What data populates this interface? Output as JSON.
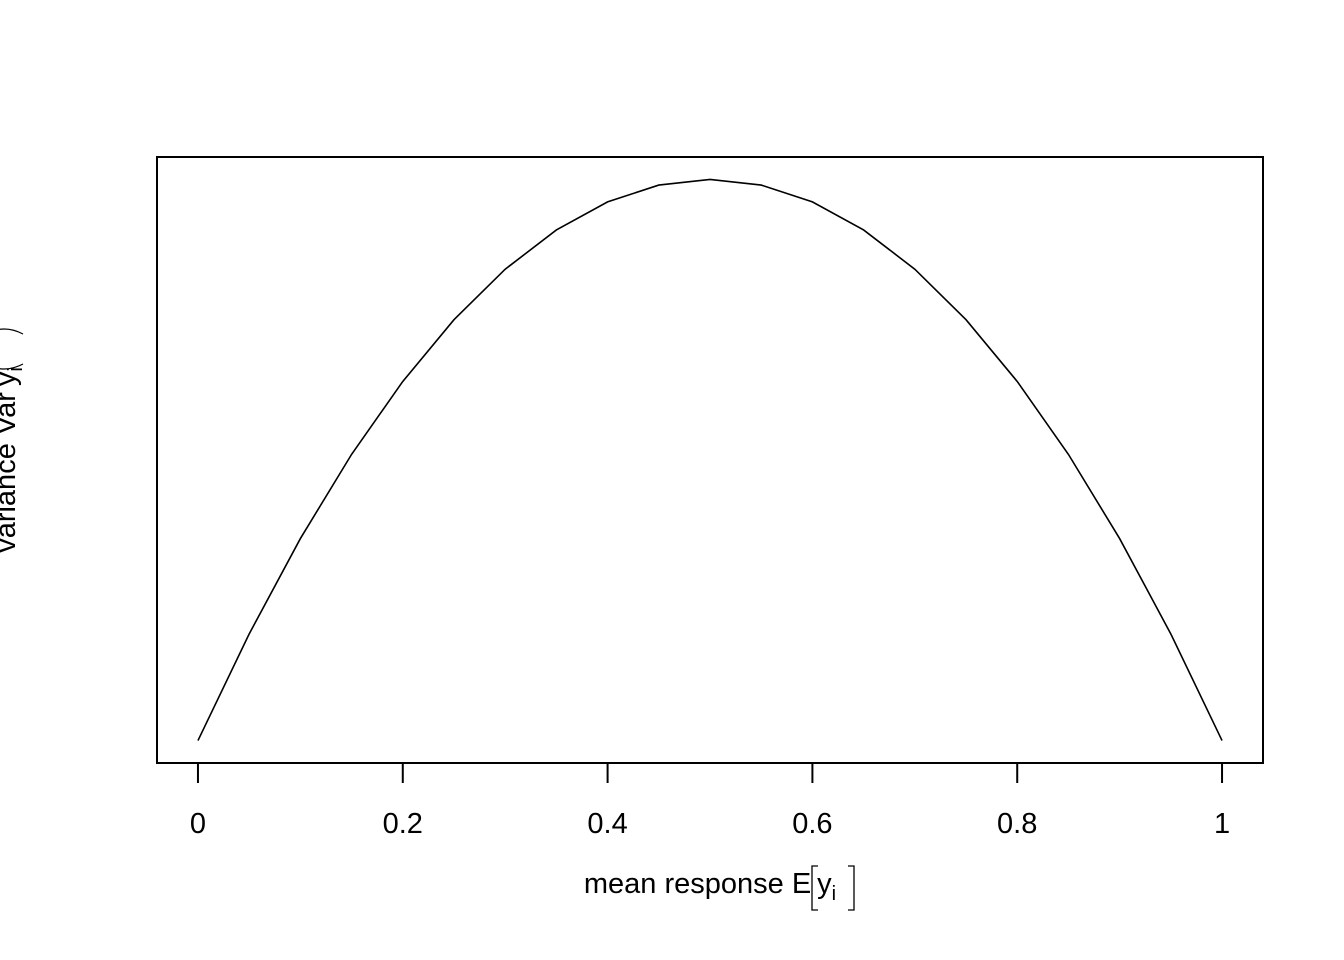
{
  "chart_data": {
    "type": "line",
    "title": "",
    "xlabel": {
      "prefix": "mean response E",
      "var": "y",
      "subscript": "i"
    },
    "ylabel": {
      "prefix": "variance Var",
      "var": "y",
      "subscript": "i"
    },
    "xlim": [
      -0.04,
      1.04
    ],
    "ylim": [
      -0.01,
      0.26
    ],
    "x_ticks": [
      0,
      0.2,
      0.4,
      0.6,
      0.8,
      1
    ],
    "x_tick_labels": [
      "0",
      "0.2",
      "0.4",
      "0.6",
      "0.8",
      "1"
    ],
    "y_ticks": [],
    "grid": false,
    "legend": "none",
    "series": [
      {
        "x": [
          0,
          0.05,
          0.1,
          0.15,
          0.2,
          0.25,
          0.3,
          0.35,
          0.4,
          0.45,
          0.5,
          0.55,
          0.6,
          0.65,
          0.7,
          0.75,
          0.8,
          0.85,
          0.9,
          0.95,
          1
        ],
        "values": [
          0,
          0.0475,
          0.09,
          0.1275,
          0.16,
          0.1875,
          0.21,
          0.2275,
          0.24,
          0.2475,
          0.25,
          0.2475,
          0.24,
          0.2275,
          0.21,
          0.1875,
          0.16,
          0.1275,
          0.09,
          0.0475,
          0
        ],
        "color": "#000000"
      }
    ]
  }
}
